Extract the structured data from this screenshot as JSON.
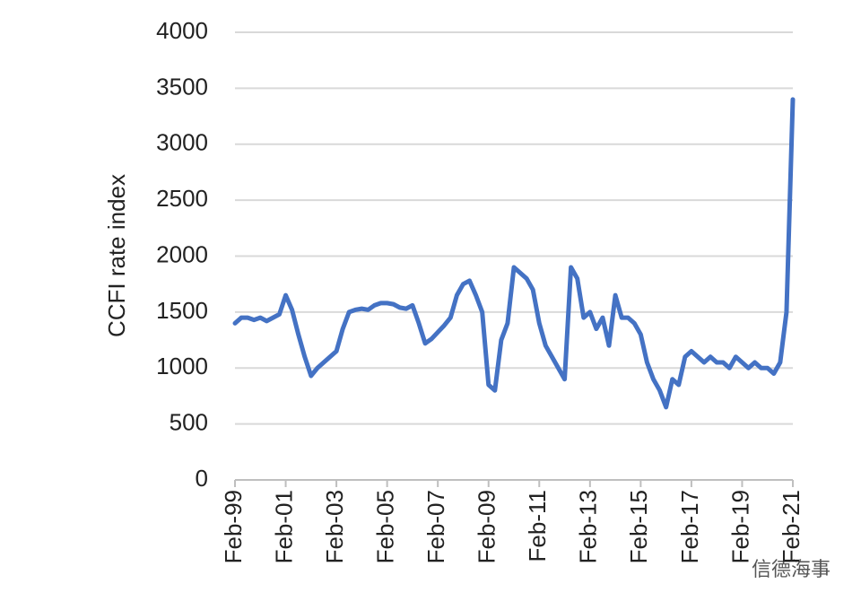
{
  "chart_data": {
    "type": "line",
    "y_label": "CCFI rate index",
    "watermark": "信德海事",
    "color": "#4472c4",
    "grid": true,
    "ylim": [
      0,
      4000
    ],
    "yticks": [
      0,
      500,
      1000,
      1500,
      2000,
      2500,
      3000,
      3500,
      4000
    ],
    "categories": [
      "Feb-99",
      null,
      null,
      null,
      null,
      null,
      null,
      null,
      "Feb-01",
      null,
      null,
      null,
      null,
      null,
      null,
      null,
      "Feb-03",
      null,
      null,
      null,
      null,
      null,
      null,
      null,
      "Feb-05",
      null,
      null,
      null,
      null,
      null,
      null,
      null,
      "Feb-07",
      null,
      null,
      null,
      null,
      null,
      null,
      null,
      "Feb-09",
      null,
      null,
      null,
      null,
      null,
      null,
      null,
      "Feb-11",
      null,
      null,
      null,
      null,
      null,
      null,
      null,
      "Feb-13",
      null,
      null,
      null,
      null,
      null,
      null,
      null,
      "Feb-15",
      null,
      null,
      null,
      null,
      null,
      null,
      null,
      "Feb-17",
      null,
      null,
      null,
      null,
      null,
      null,
      null,
      "Feb-19",
      null,
      null,
      null,
      null,
      null,
      null,
      null,
      "Feb-21"
    ],
    "values": [
      1400,
      1450,
      1450,
      1430,
      1450,
      1420,
      1450,
      1480,
      1650,
      1520,
      1300,
      1100,
      930,
      1000,
      1050,
      1100,
      1150,
      1350,
      1500,
      1520,
      1530,
      1520,
      1560,
      1580,
      1580,
      1570,
      1540,
      1530,
      1560,
      1400,
      1220,
      1260,
      1320,
      1380,
      1450,
      1650,
      1750,
      1780,
      1650,
      1500,
      850,
      800,
      1250,
      1400,
      1900,
      1850,
      1800,
      1700,
      1400,
      1200,
      1100,
      1000,
      900,
      1900,
      1800,
      1450,
      1500,
      1350,
      1450,
      1200,
      1650,
      1450,
      1450,
      1400,
      1300,
      1050,
      900,
      800,
      650,
      900,
      850,
      1100,
      1150,
      1100,
      1050,
      1100,
      1050,
      1050,
      1000,
      1100,
      1050,
      1000,
      1050,
      1000,
      1000,
      950,
      1050,
      1500,
      3400
    ]
  }
}
